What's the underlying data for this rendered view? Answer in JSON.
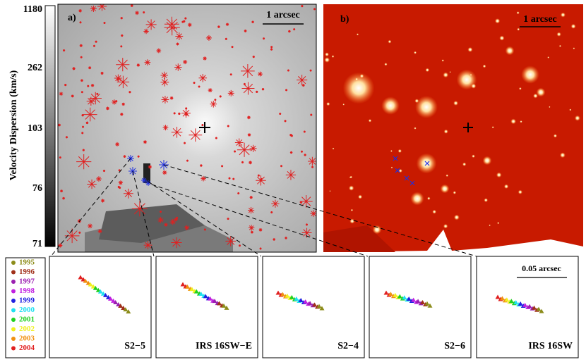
{
  "colorbar": {
    "label": "Velocity Dispersion (km/s)",
    "ticks": [
      1180,
      262,
      103,
      76,
      71
    ]
  },
  "panel_a": {
    "label": "a)",
    "scale": "1 arcsec"
  },
  "panel_b": {
    "label": "b)",
    "scale": "1 arcsec"
  },
  "legend": [
    {
      "label": "1995",
      "color": "#8c8c1a"
    },
    {
      "label": "1996",
      "color": "#a0301a"
    },
    {
      "label": "1997",
      "color": "#9a20b0"
    },
    {
      "label": "1998",
      "color": "#c020e0"
    },
    {
      "label": "1999",
      "color": "#2020e0"
    },
    {
      "label": "2000",
      "color": "#20e0f0"
    },
    {
      "label": "2001",
      "color": "#20d020"
    },
    {
      "label": "2002",
      "color": "#f0f020"
    },
    {
      "label": "2003",
      "color": "#f09010"
    },
    {
      "label": "2004",
      "color": "#e02020"
    }
  ],
  "insets": [
    {
      "name": "S2−5"
    },
    {
      "name": "IRS 16SW−E"
    },
    {
      "name": "S2−4"
    },
    {
      "name": "S2−6"
    },
    {
      "name": "IRS 16SW"
    }
  ],
  "inset_scale": "0.05 arcsec"
}
